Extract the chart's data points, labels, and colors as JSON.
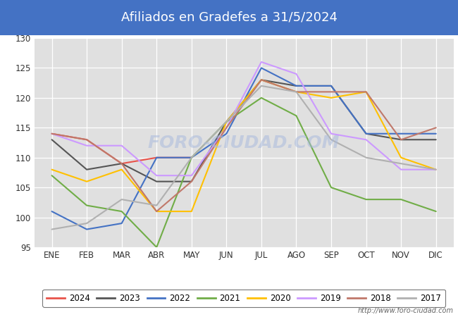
{
  "title": "Afiliados en Gradefes a 31/5/2024",
  "title_bg_color": "#4472c4",
  "title_text_color": "#ffffff",
  "ylim": [
    95,
    130
  ],
  "yticks": [
    95,
    100,
    105,
    110,
    115,
    120,
    125,
    130
  ],
  "months": [
    "ENE",
    "FEB",
    "MAR",
    "ABR",
    "MAY",
    "JUN",
    "JUL",
    "AGO",
    "SEP",
    "OCT",
    "NOV",
    "DIC"
  ],
  "watermark": "FORO-CIUDAD.COM",
  "url": "http://www.foro-ciudad.com",
  "series": {
    "2024": {
      "color": "#e8534a",
      "data": [
        114,
        113,
        109,
        110,
        110,
        null,
        null,
        null,
        null,
        null,
        null,
        null
      ]
    },
    "2023": {
      "color": "#555555",
      "data": [
        113,
        108,
        109,
        106,
        106,
        116,
        123,
        122,
        122,
        114,
        113,
        113
      ]
    },
    "2022": {
      "color": "#4472c4",
      "data": [
        101,
        98,
        99,
        110,
        110,
        114,
        125,
        122,
        122,
        114,
        114,
        114
      ]
    },
    "2021": {
      "color": "#70ad47",
      "data": [
        107,
        102,
        101,
        95,
        110,
        116,
        120,
        117,
        105,
        103,
        103,
        101
      ]
    },
    "2020": {
      "color": "#ffc000",
      "data": [
        108,
        106,
        108,
        101,
        101,
        116,
        123,
        121,
        120,
        121,
        110,
        108
      ]
    },
    "2019": {
      "color": "#cc99ff",
      "data": [
        114,
        112,
        112,
        107,
        107,
        115,
        126,
        124,
        114,
        113,
        108,
        108
      ]
    },
    "2018": {
      "color": "#c0786a",
      "data": [
        114,
        113,
        109,
        101,
        106,
        115,
        123,
        121,
        121,
        121,
        113,
        115
      ]
    },
    "2017": {
      "color": "#b0b0b0",
      "data": [
        98,
        99,
        103,
        102,
        110,
        116,
        122,
        121,
        113,
        110,
        109,
        108
      ]
    }
  },
  "legend_order": [
    "2024",
    "2023",
    "2022",
    "2021",
    "2020",
    "2019",
    "2018",
    "2017"
  ],
  "bg_color": "#ffffff",
  "plot_bg_color": "#e0e0e0",
  "grid_color": "#ffffff",
  "font_color": "#333333"
}
